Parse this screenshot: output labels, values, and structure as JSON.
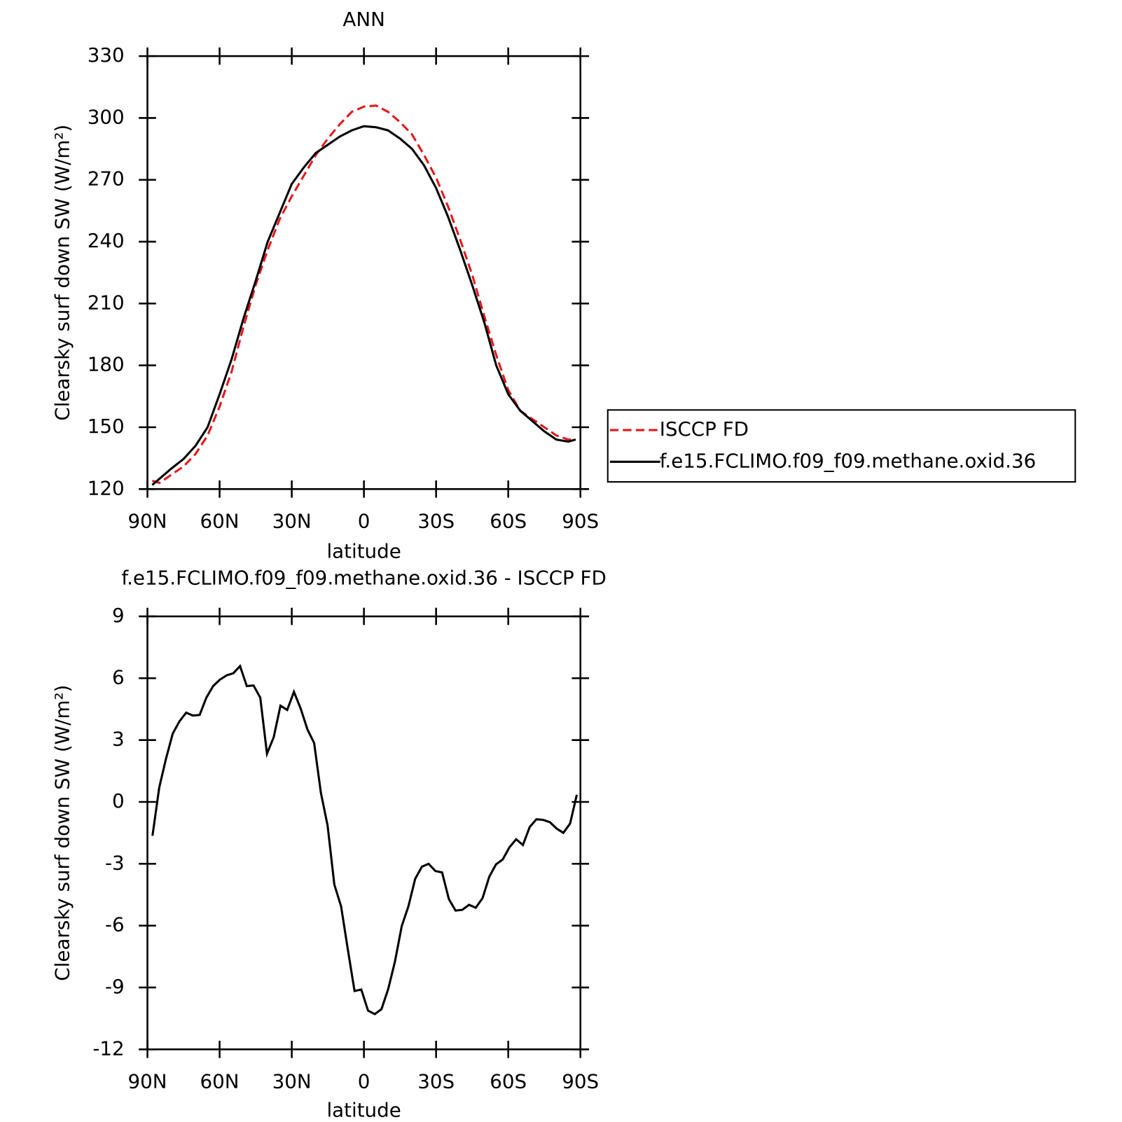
{
  "chart_data": [
    {
      "type": "line",
      "title": "ANN",
      "x_label": "latitude",
      "y_label": "Clearsky surf down SW (W/m²)",
      "x": [
        88,
        85,
        80,
        75,
        70,
        65,
        60,
        55,
        50,
        45,
        40,
        35,
        30,
        25,
        20,
        15,
        10,
        5,
        0,
        -5,
        -10,
        -15,
        -20,
        -25,
        -30,
        -35,
        -40,
        -45,
        -50,
        -55,
        -60,
        -65,
        -70,
        -75,
        -80,
        -85,
        -88
      ],
      "series": [
        {
          "name": "ISCCP FD",
          "color": "#e31a1c",
          "linestyle": "dashed",
          "values": [
            124,
            123,
            127,
            131,
            137,
            146,
            160,
            177,
            199,
            219,
            236,
            251,
            262,
            272,
            282,
            290,
            297,
            303,
            305.5,
            306,
            303,
            298,
            292,
            282,
            271,
            257,
            241,
            224,
            204,
            185,
            168,
            158,
            154,
            150,
            146,
            144,
            144
          ]
        },
        {
          "name": "f.e15.FCLIMO.f09_f09.methane.oxid.36",
          "color": "#000000",
          "linestyle": "solid",
          "values": [
            122,
            125,
            130,
            134.6,
            141,
            150,
            166,
            183,
            203,
            221,
            240,
            254,
            268,
            276,
            283,
            287,
            291,
            294,
            296,
            295.5,
            294,
            290,
            285,
            277,
            266,
            252,
            236,
            219,
            201,
            180,
            166,
            158,
            153,
            148,
            144,
            143,
            144
          ]
        }
      ],
      "xlim": [
        90,
        -90
      ],
      "xticks": [
        {
          "value": 90,
          "label": "90N"
        },
        {
          "value": 60,
          "label": "60N"
        },
        {
          "value": 30,
          "label": "30N"
        },
        0,
        {
          "value": -30,
          "label": "30S"
        },
        {
          "value": -60,
          "label": "60S"
        },
        {
          "value": -90,
          "label": "90S"
        }
      ],
      "ylim": [
        120,
        330
      ],
      "yticks": [
        120,
        150,
        180,
        210,
        240,
        270,
        300,
        330
      ],
      "legend": "right"
    },
    {
      "type": "line",
      "title": "f.e15.FCLIMO.f09_f09.methane.oxid.36 - ISCCP FD",
      "x_label": "latitude",
      "y_label": "Clearsky surf down SW (W/m²)",
      "x": [
        87.9,
        85.1,
        82.3,
        79.5,
        76.7,
        73.9,
        71.1,
        68.3,
        65.5,
        62.7,
        59.9,
        57.1,
        54.3,
        51.5,
        48.7,
        45.9,
        43.1,
        40.3,
        37.5,
        34.7,
        31.9,
        29.1,
        26.3,
        23.5,
        20.7,
        17.9,
        15.1,
        12.3,
        9.5,
        6.7,
        3.9,
        1.1,
        -1.7,
        -4.5,
        -7.3,
        -10.1,
        -12.9,
        -15.7,
        -18.5,
        -21.3,
        -24.1,
        -26.9,
        -29.7,
        -32.5,
        -35.3,
        -38.1,
        -40.9,
        -43.7,
        -46.5,
        -49.3,
        -52.1,
        -54.9,
        -57.7,
        -60.5,
        -63.3,
        -66.1,
        -68.9,
        -71.7,
        -74.5,
        -77.3,
        -80.1,
        -82.9,
        -85.7,
        -88.5
      ],
      "color": "#000000",
      "values": [
        -1.64,
        0.7,
        2.09,
        3.31,
        3.91,
        4.33,
        4.19,
        4.22,
        5.06,
        5.62,
        5.93,
        6.14,
        6.24,
        6.59,
        5.62,
        5.65,
        5.06,
        2.34,
        3.14,
        4.67,
        4.46,
        5.34,
        4.53,
        3.52,
        2.86,
        0.45,
        -1.15,
        -4.01,
        -5.06,
        -7.15,
        -9.17,
        -9.1,
        -10.12,
        -10.29,
        -10.05,
        -9.07,
        -7.74,
        -6.03,
        -5.06,
        -3.73,
        -3.14,
        -3.0,
        -3.35,
        -3.42,
        -4.71,
        -5.27,
        -5.23,
        -4.99,
        -5.13,
        -4.67,
        -3.63,
        -3.03,
        -2.79,
        -2.2,
        -1.81,
        -2.09,
        -1.22,
        -0.84,
        -0.87,
        -0.98,
        -1.29,
        -1.5,
        -1.05,
        0.35
      ],
      "xlim": [
        90,
        -90
      ],
      "xticks": [
        {
          "value": 90,
          "label": "90N"
        },
        {
          "value": 60,
          "label": "60N"
        },
        {
          "value": 30,
          "label": "30N"
        },
        0,
        {
          "value": -30,
          "label": "30S"
        },
        {
          "value": -60,
          "label": "60S"
        },
        {
          "value": -90,
          "label": "90S"
        }
      ],
      "ylim": [
        -12,
        9
      ],
      "yticks": [
        -12,
        -9,
        -6,
        -3,
        0,
        3,
        6,
        9
      ]
    }
  ]
}
